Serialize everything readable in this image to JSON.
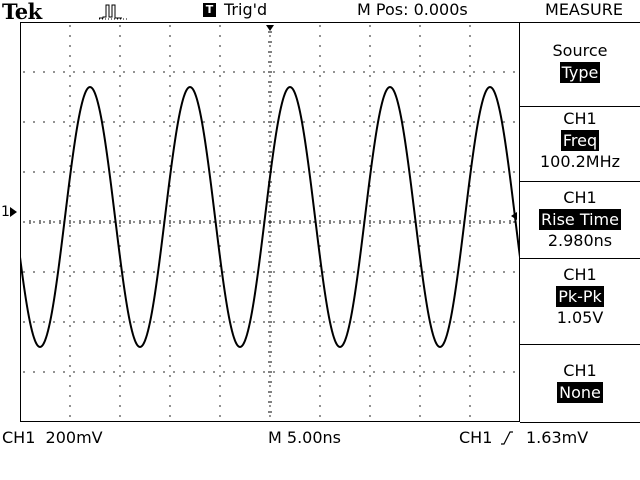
{
  "header": {
    "brand": "Tek",
    "run_icon": "pulse-run-icon",
    "trigger_box": "T",
    "trigger_status": "Trig'd",
    "mpos": "M Pos: 0.000s",
    "menu_title": "MEASURE"
  },
  "menu": {
    "items": [
      {
        "line1": "Source",
        "line2": "Type",
        "line3": ""
      },
      {
        "line1": "CH1",
        "line2": "Freq",
        "line3": "100.2MHz"
      },
      {
        "line1": "CH1",
        "line2": "Rise Time",
        "line3": "2.980ns"
      },
      {
        "line1": "CH1",
        "line2": "Pk-Pk",
        "line3": "1.05V"
      },
      {
        "line1": "CH1",
        "line2": "None",
        "line3": ""
      }
    ]
  },
  "screen": {
    "channel_marker": "1",
    "trace_color": "#000000",
    "grid_color": "#000000"
  },
  "footer": {
    "ch1_scale": "CH1  200mV",
    "time_scale": "M 5.00ns",
    "trig_source": "CH1",
    "trig_level": "1.63mV"
  }
}
